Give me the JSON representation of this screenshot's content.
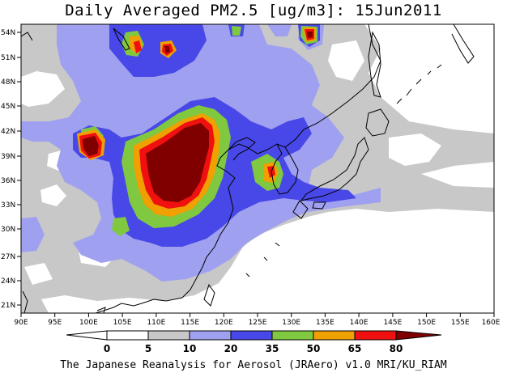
{
  "title": "Daily Averaged PM2.5 [ug/m3]: 15Jun2011",
  "footer": "The Japanese Reanalysis for Aerosol (JRAero) v1.0 MRI/KU_RIAM",
  "map": {
    "lon_range": [
      90,
      160
    ],
    "lat_range": [
      19.5,
      55.5
    ],
    "lon_ticks": [
      "90E",
      "95E",
      "100E",
      "105E",
      "110E",
      "115E",
      "120E",
      "125E",
      "130E",
      "135E",
      "140E",
      "145E",
      "150E",
      "155E",
      "160E"
    ],
    "lat_ticks": [
      "21N",
      "24N",
      "27N",
      "30N",
      "33N",
      "36N",
      "39N",
      "42N",
      "45N",
      "48N",
      "51N",
      "54N"
    ],
    "background_color": "#ffffff"
  },
  "colorbar": {
    "labels": [
      "0",
      "5",
      "10",
      "20",
      "35",
      "50",
      "65",
      "80"
    ],
    "colors": [
      "#ffffff",
      "#c8c8c8",
      "#a0a0f0",
      "#4848e8",
      "#80c840",
      "#f0a000",
      "#f01010",
      "#800000"
    ]
  }
}
